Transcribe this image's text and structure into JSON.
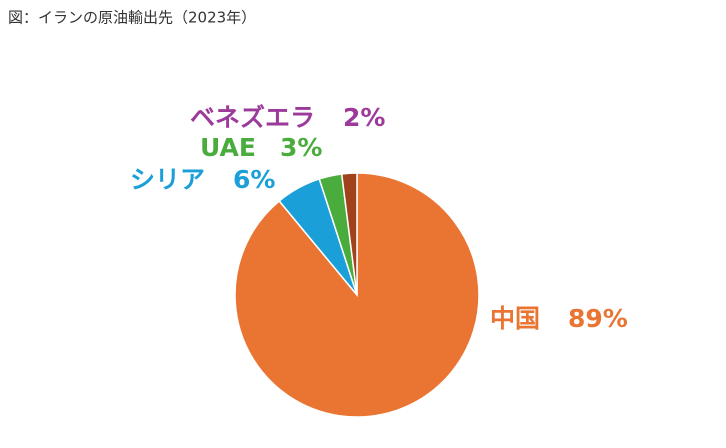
{
  "chart_data": {
    "type": "pie",
    "title": "図：イランの原油輸出先（2023年）",
    "categories": [
      "中国",
      "シリア",
      "UAE",
      "ベネズエラ"
    ],
    "values": [
      89,
      6,
      3,
      2
    ],
    "value_labels": [
      "89%",
      "6%",
      "3%",
      "2%"
    ],
    "colors": [
      "#ea7533",
      "#1b9fd8",
      "#4aac3c",
      "#a0431c"
    ],
    "label_colors": [
      "#ea7533",
      "#1b9fd8",
      "#4aac3c",
      "#9b3a9b"
    ]
  }
}
